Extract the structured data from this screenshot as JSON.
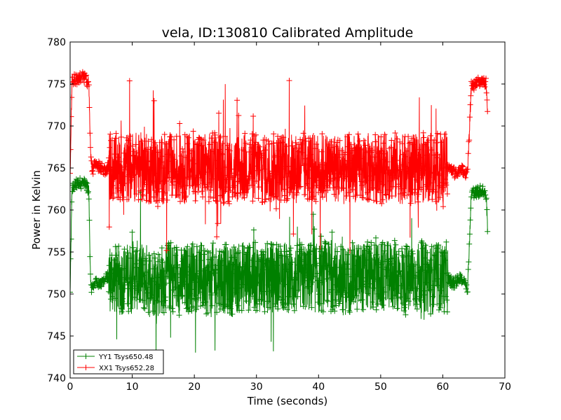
{
  "chart_data": {
    "type": "line",
    "title": "vela, ID:130810 Calibrated Amplitude",
    "xlabel": "Time (seconds)",
    "ylabel": "Power in Kelvin",
    "xlim": [
      0,
      70
    ],
    "ylim": [
      740,
      780
    ],
    "xticks": [
      0,
      10,
      20,
      30,
      40,
      50,
      60,
      70
    ],
    "yticks": [
      740,
      745,
      750,
      755,
      760,
      765,
      770,
      775,
      780
    ],
    "grid": false,
    "legend_position": "bottom-left",
    "marker": "+",
    "series": [
      {
        "name": "YY1 Tsys650.48",
        "color": "#008000",
        "x": [
          0,
          0.3,
          1,
          2,
          3,
          3.3,
          3.6,
          4,
          5,
          5.8,
          6.2,
          8,
          10,
          12,
          14,
          16,
          18,
          20,
          22,
          24,
          26,
          28,
          30,
          32,
          34,
          36,
          38,
          40,
          42,
          44,
          46,
          48,
          50,
          52,
          54,
          56,
          58,
          60,
          60.8,
          61.3,
          62,
          63,
          63.5,
          64,
          64.6,
          65.5,
          66.5,
          67.0,
          67.2
        ],
        "y": [
          750,
          762.5,
          763,
          763.3,
          762.5,
          751,
          750.8,
          751.5,
          751.2,
          751.8,
          752,
          751.5,
          752.3,
          752,
          751.3,
          752.2,
          751.5,
          752.3,
          751.8,
          752,
          751.5,
          752.2,
          752,
          751.8,
          752.3,
          751.6,
          752.1,
          751.8,
          752.4,
          751.5,
          752.1,
          752,
          751.9,
          752.3,
          751.6,
          752,
          751.8,
          752,
          752,
          751.5,
          751.3,
          752,
          751.5,
          750.8,
          762,
          762.2,
          762.3,
          761.5,
          758
        ]
      },
      {
        "name": "XX1 Tsys652.28",
        "color": "#ff0000",
        "x": [
          0,
          0.3,
          1,
          2,
          3,
          3.3,
          3.6,
          4,
          5,
          5.8,
          6.2,
          8,
          10,
          12,
          14,
          16,
          18,
          20,
          22,
          24,
          26,
          28,
          30,
          32,
          34,
          36,
          38,
          40,
          42,
          44,
          46,
          48,
          50,
          52,
          54,
          56,
          58,
          60,
          60.8,
          61.3,
          62,
          63,
          63.5,
          64,
          64.6,
          65.5,
          66.5,
          67.0,
          67.2
        ],
        "y": [
          764,
          775.5,
          775.5,
          776,
          775.2,
          766.5,
          764.8,
          765.5,
          765,
          764.8,
          765.2,
          764.8,
          765.2,
          765,
          764.6,
          765.1,
          764.8,
          765.2,
          765,
          765.1,
          764.8,
          765.1,
          765,
          764.8,
          765.2,
          764.9,
          765.1,
          765,
          765.2,
          764.8,
          765.1,
          765,
          764.9,
          765.2,
          764.7,
          765,
          765.1,
          764.9,
          765.5,
          764.6,
          764.5,
          764.8,
          764.3,
          764.5,
          774.8,
          775.2,
          775.2,
          775,
          772
        ]
      }
    ]
  }
}
